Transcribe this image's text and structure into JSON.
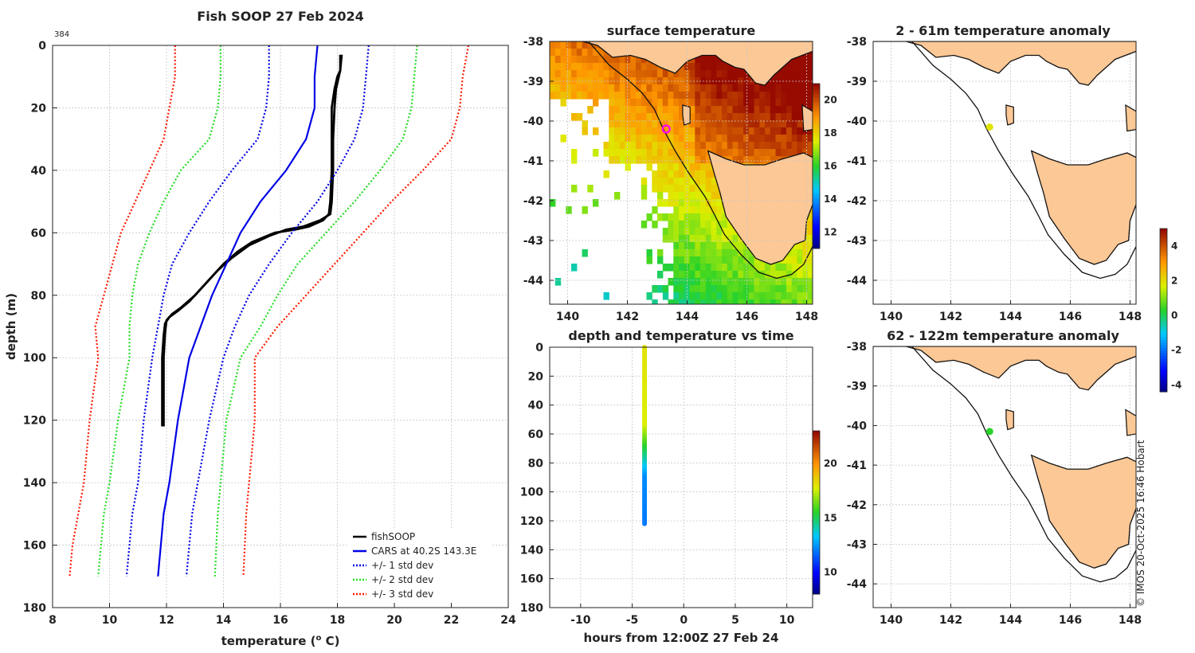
{
  "chart_data": [
    {
      "id": "profile",
      "type": "line",
      "title": "Fish SOOP 27 Feb 2024",
      "annotation": "384",
      "xlabel": "temperature (",
      "xlabel_sup": "o",
      "xlabel_tail": " C)",
      "ylabel": "depth (m)",
      "xlim": [
        8,
        24
      ],
      "ylim": [
        0,
        180
      ],
      "xticks": [
        8,
        10,
        12,
        14,
        16,
        18,
        20,
        22,
        24
      ],
      "yticks": [
        0,
        20,
        40,
        60,
        80,
        100,
        120,
        140,
        160,
        180
      ],
      "legend": {
        "position": "bottom-right",
        "entries": [
          "fishSOOP",
          "CARS at 40.2S 143.3E",
          "+/- 1 std dev",
          "+/- 2 std dev",
          "+/- 3 std dev"
        ]
      },
      "series": [
        {
          "name": "fishSOOP",
          "color": "#000000",
          "style": "solid",
          "x": [
            18.1,
            18.1,
            18.0,
            17.9,
            17.8,
            17.8,
            17.8,
            17.75,
            17.7,
            17.5,
            17.0,
            16.5,
            15.8,
            15.0,
            14.5,
            14.0,
            13.5,
            13.0,
            12.5,
            12.2,
            12.0,
            11.95,
            11.9,
            11.9,
            11.9
          ],
          "y": [
            3,
            8,
            10,
            14,
            20,
            30,
            40,
            50,
            54,
            56,
            58,
            59,
            60,
            63,
            66,
            70,
            75,
            80,
            84,
            86,
            88,
            92,
            100,
            110,
            122
          ]
        },
        {
          "name": "fishSOOP-2",
          "color": "#000000",
          "style": "solid",
          "x": [
            18.15,
            18.1,
            18.05,
            17.95,
            17.9,
            17.85,
            17.85,
            17.8,
            17.75,
            17.4,
            16.8,
            16.2,
            15.6,
            14.9,
            14.3,
            13.8,
            13.3,
            12.8,
            12.4,
            12.1,
            11.95,
            11.9,
            11.85,
            11.85,
            11.85
          ],
          "y": [
            3,
            8,
            10,
            14,
            20,
            30,
            40,
            50,
            54,
            56,
            58,
            59,
            61,
            64,
            68,
            72,
            77,
            82,
            85,
            87,
            89,
            93,
            100,
            110,
            122
          ]
        },
        {
          "name": "CARS at 40.2S 143.3E",
          "color": "#0000e6",
          "style": "solid",
          "x": [
            17.3,
            17.2,
            17.2,
            16.9,
            16.2,
            15.3,
            14.6,
            14.1,
            13.6,
            13.2,
            12.8,
            12.4,
            12.1,
            11.9,
            11.8,
            11.7
          ],
          "y": [
            0,
            10,
            20,
            30,
            40,
            50,
            60,
            70,
            80,
            90,
            100,
            120,
            140,
            150,
            160,
            170
          ]
        },
        {
          "name": "+/- 1 std dev",
          "color": "#0000e6",
          "style": "dotted",
          "x": [
            15.6,
            15.6,
            15.5,
            15.2,
            14.3,
            13.5,
            12.8,
            12.2,
            11.9,
            11.7,
            11.5,
            11.2,
            11.0,
            10.8,
            10.7,
            10.6
          ],
          "y": [
            0,
            10,
            20,
            30,
            40,
            50,
            60,
            70,
            80,
            90,
            100,
            120,
            140,
            150,
            160,
            170
          ]
        },
        {
          "name": "+/- 1 std dev hi",
          "color": "#0000e6",
          "style": "dotted",
          "x": [
            19.1,
            19.0,
            18.9,
            18.6,
            18.0,
            17.3,
            16.4,
            15.6,
            14.9,
            14.4,
            14.0,
            13.5,
            13.1,
            12.9,
            12.8,
            12.7
          ],
          "y": [
            0,
            10,
            20,
            30,
            40,
            50,
            60,
            70,
            80,
            90,
            100,
            120,
            140,
            150,
            160,
            170
          ]
        },
        {
          "name": "+/- 2 std dev",
          "color": "#22dd22",
          "style": "dotted",
          "x": [
            13.9,
            13.9,
            13.8,
            13.5,
            12.5,
            11.9,
            11.4,
            11.0,
            10.8,
            10.7,
            10.7,
            10.3,
            10.0,
            9.8,
            9.7,
            9.6
          ],
          "y": [
            0,
            10,
            20,
            30,
            40,
            50,
            60,
            70,
            80,
            90,
            100,
            120,
            140,
            150,
            160,
            170
          ]
        },
        {
          "name": "+/- 2 std dev hi",
          "color": "#22dd22",
          "style": "dotted",
          "x": [
            20.8,
            20.7,
            20.6,
            20.3,
            19.5,
            18.6,
            17.6,
            16.6,
            15.9,
            15.3,
            14.6,
            14.1,
            13.9,
            13.8,
            13.75,
            13.7
          ],
          "y": [
            0,
            10,
            20,
            30,
            40,
            50,
            60,
            70,
            80,
            90,
            100,
            120,
            140,
            150,
            160,
            170
          ]
        },
        {
          "name": "+/- 3 std dev",
          "color": "#ff1a00",
          "style": "dotted",
          "x": [
            12.3,
            12.3,
            12.1,
            11.9,
            11.4,
            10.9,
            10.4,
            10.1,
            9.8,
            9.5,
            9.6,
            9.3,
            9.1,
            8.9,
            8.7,
            8.6
          ],
          "y": [
            0,
            10,
            20,
            30,
            40,
            50,
            60,
            70,
            80,
            90,
            100,
            120,
            140,
            150,
            160,
            170
          ]
        },
        {
          "name": "+/- 3 std dev hi",
          "color": "#ff1a00",
          "style": "dotted",
          "x": [
            22.6,
            22.4,
            22.3,
            22.0,
            21.0,
            19.9,
            18.9,
            17.9,
            16.9,
            15.9,
            15.1,
            15.1,
            14.9,
            14.8,
            14.75,
            14.7
          ],
          "y": [
            0,
            10,
            20,
            30,
            40,
            50,
            60,
            70,
            80,
            90,
            100,
            120,
            140,
            150,
            160,
            170
          ]
        }
      ]
    },
    {
      "id": "sst",
      "type": "heatmap",
      "title": "surface temperature",
      "xlim": [
        139.4,
        148.2
      ],
      "ylim": [
        -44.6,
        -38
      ],
      "xticks": [
        140,
        142,
        144,
        146,
        148
      ],
      "yticks": [
        -38,
        -39,
        -40,
        -41,
        -42,
        -43,
        -44
      ],
      "colorbar": {
        "ticks": [
          12,
          14,
          16,
          18,
          20
        ],
        "range": [
          11,
          21
        ]
      },
      "marker": {
        "lon": 143.3,
        "lat": -40.2,
        "color": "#ff00ff"
      }
    },
    {
      "id": "time",
      "type": "scatter",
      "title": "depth and temperature vs time",
      "xlabel": "hours from 12:00Z 27 Feb 24",
      "xlim": [
        -13,
        12.5
      ],
      "ylim": [
        0,
        180
      ],
      "xticks": [
        -10,
        -5,
        0,
        5,
        10
      ],
      "yticks": [
        0,
        20,
        40,
        60,
        80,
        100,
        120,
        140,
        160,
        180
      ],
      "colorbar": {
        "ticks": [
          10,
          15,
          20
        ],
        "range": [
          8,
          23
        ]
      },
      "x": -3.8,
      "depth_range": [
        0,
        122
      ],
      "temp_surface": 18.1,
      "temp_bottom": 11.9
    },
    {
      "id": "anom1",
      "type": "scatter",
      "title": "2 - 61m temperature anomaly",
      "xlim": [
        139.4,
        148.2
      ],
      "ylim": [
        -44.6,
        -38
      ],
      "xticks": [
        140,
        142,
        144,
        146,
        148
      ],
      "yticks": [
        -38,
        -39,
        -40,
        -41,
        -42,
        -43,
        -44
      ],
      "point": {
        "lon": 143.3,
        "lat": -40.15,
        "value": 1.9
      }
    },
    {
      "id": "anom2",
      "type": "scatter",
      "title": "62 - 122m temperature anomaly",
      "xlim": [
        139.4,
        148.2
      ],
      "ylim": [
        -44.6,
        -38
      ],
      "xticks": [
        140,
        142,
        144,
        146,
        148
      ],
      "yticks": [
        -38,
        -39,
        -40,
        -41,
        -42,
        -43,
        -44
      ],
      "point": {
        "lon": 143.3,
        "lat": -40.15,
        "value": 0.3
      }
    },
    {
      "id": "anom_cbar",
      "type": "colorbar",
      "ticks": [
        4,
        2,
        0,
        -2,
        -4
      ],
      "range": [
        -4.4,
        5
      ]
    }
  ],
  "credit": "© IMOS 20-Oct-2025 16:46 Hobart",
  "colors": {
    "land": "#fcc896",
    "grid": "#c8c8c8"
  }
}
